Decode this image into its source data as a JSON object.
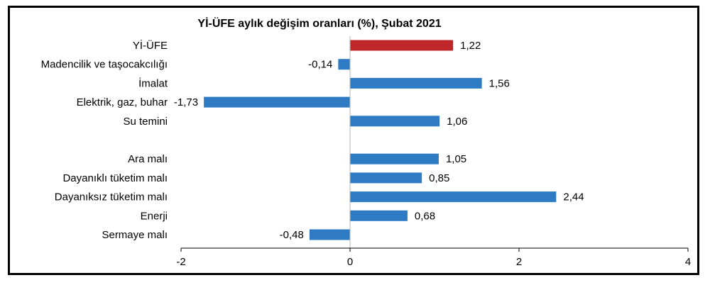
{
  "chart_data": {
    "type": "bar",
    "orientation": "horizontal",
    "title": "Yİ-ÜFE aylık değişim oranları (%), Şubat 2021",
    "categories": [
      "Yİ-ÜFE",
      "Madencilik ve taşocakcılığı",
      "İmalat",
      "Elektrik, gaz, buhar",
      "Su temini",
      "",
      "Ara malı",
      "Dayanıklı tüketim malı",
      "Dayanıksız tüketim malı",
      "Enerji",
      "Sermaye malı"
    ],
    "values": [
      1.22,
      -0.14,
      1.56,
      -1.73,
      1.06,
      null,
      1.05,
      0.85,
      2.44,
      0.68,
      -0.48
    ],
    "value_labels": [
      "1,22",
      "-0,14",
      "1,56",
      "-1,73",
      "1,06",
      "",
      "1,05",
      "0,85",
      "2,44",
      "0,68",
      "-0,48"
    ],
    "highlight_index": 0,
    "colors": {
      "highlight": "#C0272D",
      "bar": "#2E7BC4",
      "axis": "#000000"
    },
    "xlim": [
      -2,
      4
    ],
    "xticks": [
      -2,
      0,
      2,
      4
    ],
    "xtick_labels": [
      "-2",
      "0",
      "2",
      "4"
    ],
    "xlabel": "",
    "ylabel": "",
    "grid": false,
    "legend": "none"
  }
}
